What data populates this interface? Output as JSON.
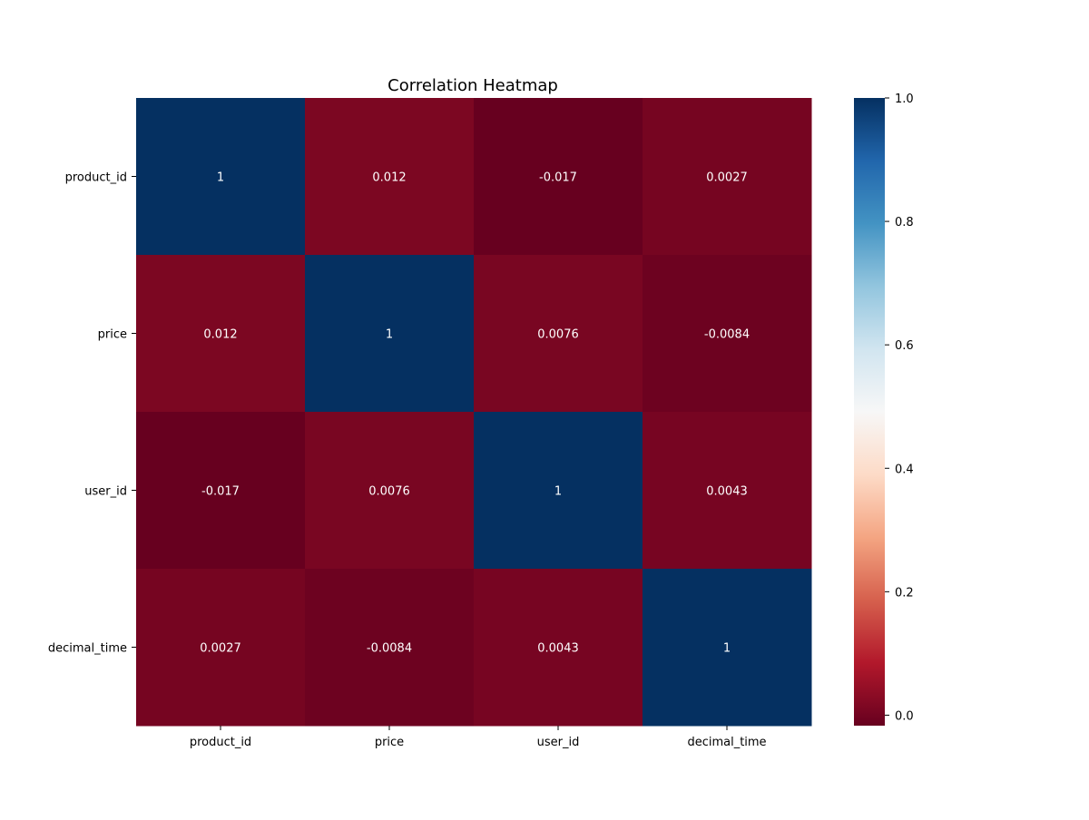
{
  "chart_data": {
    "type": "heatmap",
    "title": "Correlation Heatmap",
    "row_labels": [
      "product_id",
      "price",
      "user_id",
      "decimal_time"
    ],
    "col_labels": [
      "product_id",
      "price",
      "user_id",
      "decimal_time"
    ],
    "values": [
      [
        1,
        0.012,
        -0.017,
        0.0027
      ],
      [
        0.012,
        1,
        0.0076,
        -0.0084
      ],
      [
        -0.017,
        0.0076,
        1,
        0.0043
      ],
      [
        0.0027,
        -0.0084,
        0.0043,
        1
      ]
    ],
    "annotations": [
      [
        "1",
        "0.012",
        "-0.017",
        "0.0027"
      ],
      [
        "0.012",
        "1",
        "0.0076",
        "-0.0084"
      ],
      [
        "-0.017",
        "0.0076",
        "1",
        "0.0043"
      ],
      [
        "0.0027",
        "-0.0084",
        "0.0043",
        "1"
      ]
    ],
    "colormap": "RdBu",
    "colorbar": {
      "vmin": -0.017,
      "vmax": 1.0,
      "ticks": [
        0.0,
        0.2,
        0.4,
        0.6,
        0.8,
        1.0
      ],
      "tick_labels": [
        "0.0",
        "0.2",
        "0.4",
        "0.6",
        "0.8",
        "1.0"
      ]
    },
    "annotation_color": "#ffffff"
  }
}
